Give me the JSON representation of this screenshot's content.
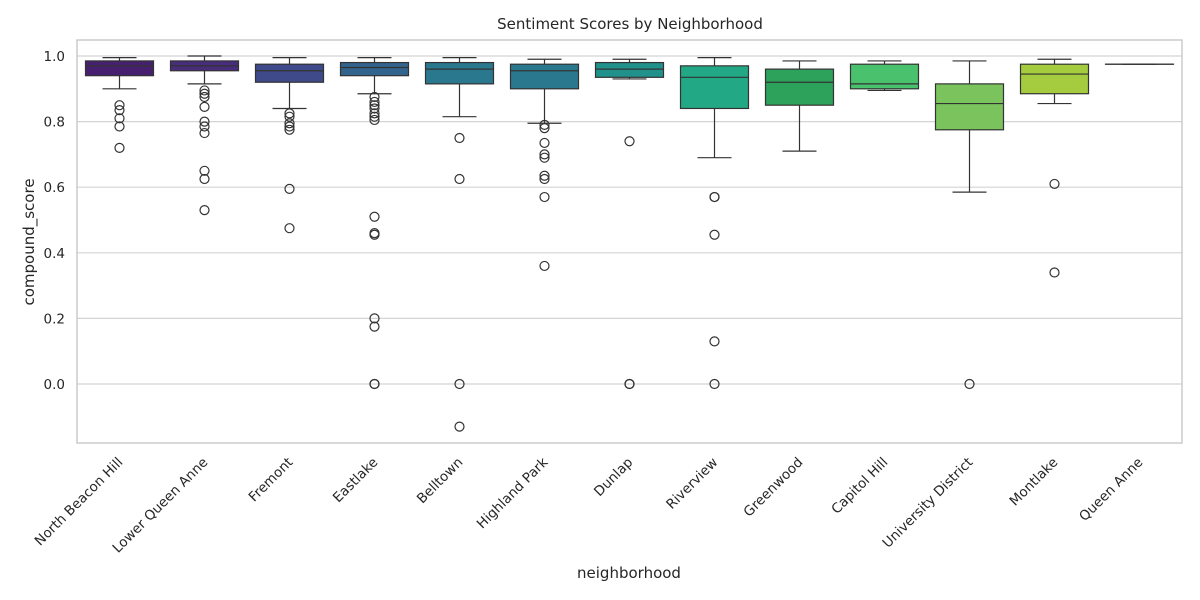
{
  "chart_data": {
    "type": "box",
    "title": "Sentiment Scores by Neighborhood",
    "xlabel": "neighborhood",
    "ylabel": "compound_score",
    "ylim": [
      -0.18,
      1.05
    ],
    "yticks": [
      "0.0",
      "0.2",
      "0.4",
      "0.6",
      "0.8",
      "1.0"
    ],
    "ytick_values": [
      0.0,
      0.2,
      0.4,
      0.6,
      0.8,
      1.0
    ],
    "grid": "horizontal",
    "palette": "viridis",
    "categories": [
      "North Beacon Hill",
      "Lower Queen Anne",
      "Fremont",
      "Eastlake",
      "Belltown",
      "Highland Park",
      "Dunlap",
      "Riverview",
      "Greenwood",
      "Capitol Hill",
      "University District",
      "Montlake",
      "Queen Anne"
    ],
    "colors": [
      "#46206e",
      "#472d7b",
      "#3e4a89",
      "#32648e",
      "#2a788e",
      "#2a788e",
      "#21918c",
      "#22a884",
      "#2ca25a",
      "#4ac16d",
      "#7ac35d",
      "#a4cc3e",
      "#f0f921"
    ],
    "boxes": [
      {
        "q1": 0.94,
        "median": 0.97,
        "q3": 0.985,
        "whisker_low": 0.9,
        "whisker_high": 0.995,
        "outliers": [
          0.85,
          0.835,
          0.81,
          0.785,
          0.72
        ]
      },
      {
        "q1": 0.955,
        "median": 0.97,
        "q3": 0.985,
        "whisker_low": 0.915,
        "whisker_high": 1.0,
        "outliers": [
          0.895,
          0.885,
          0.875,
          0.845,
          0.8,
          0.785,
          0.765,
          0.65,
          0.625,
          0.53
        ]
      },
      {
        "q1": 0.92,
        "median": 0.955,
        "q3": 0.975,
        "whisker_low": 0.84,
        "whisker_high": 0.995,
        "outliers": [
          0.825,
          0.815,
          0.795,
          0.785,
          0.775,
          0.595,
          0.475
        ]
      },
      {
        "q1": 0.94,
        "median": 0.965,
        "q3": 0.98,
        "whisker_low": 0.885,
        "whisker_high": 0.995,
        "outliers": [
          0.875,
          0.86,
          0.85,
          0.84,
          0.825,
          0.815,
          0.805,
          0.51,
          0.455,
          0.46,
          0.2,
          0.175,
          0.0,
          0.0
        ]
      },
      {
        "q1": 0.915,
        "median": 0.96,
        "q3": 0.98,
        "whisker_low": 0.815,
        "whisker_high": 0.995,
        "outliers": [
          0.75,
          0.625,
          0.0,
          -0.13
        ]
      },
      {
        "q1": 0.9,
        "median": 0.955,
        "q3": 0.975,
        "whisker_low": 0.795,
        "whisker_high": 0.99,
        "outliers": [
          0.79,
          0.78,
          0.735,
          0.7,
          0.69,
          0.635,
          0.625,
          0.57,
          0.36
        ]
      },
      {
        "q1": 0.935,
        "median": 0.96,
        "q3": 0.98,
        "whisker_low": 0.93,
        "whisker_high": 0.99,
        "outliers": [
          0.74,
          0.0,
          0.0
        ]
      },
      {
        "q1": 0.84,
        "median": 0.935,
        "q3": 0.97,
        "whisker_low": 0.69,
        "whisker_high": 0.995,
        "outliers": [
          0.57,
          0.57,
          0.455,
          0.13,
          0.0
        ]
      },
      {
        "q1": 0.85,
        "median": 0.92,
        "q3": 0.96,
        "whisker_low": 0.71,
        "whisker_high": 0.985,
        "outliers": []
      },
      {
        "q1": 0.9,
        "median": 0.915,
        "q3": 0.975,
        "whisker_low": 0.895,
        "whisker_high": 0.985,
        "outliers": []
      },
      {
        "q1": 0.775,
        "median": 0.855,
        "q3": 0.915,
        "whisker_low": 0.585,
        "whisker_high": 0.985,
        "outliers": [
          0.0
        ]
      },
      {
        "q1": 0.885,
        "median": 0.945,
        "q3": 0.975,
        "whisker_low": 0.855,
        "whisker_high": 0.99,
        "outliers": [
          0.61,
          0.34
        ]
      },
      {
        "q1": 0.975,
        "median": 0.975,
        "q3": 0.975,
        "whisker_low": 0.975,
        "whisker_high": 0.975,
        "outliers": []
      }
    ]
  }
}
